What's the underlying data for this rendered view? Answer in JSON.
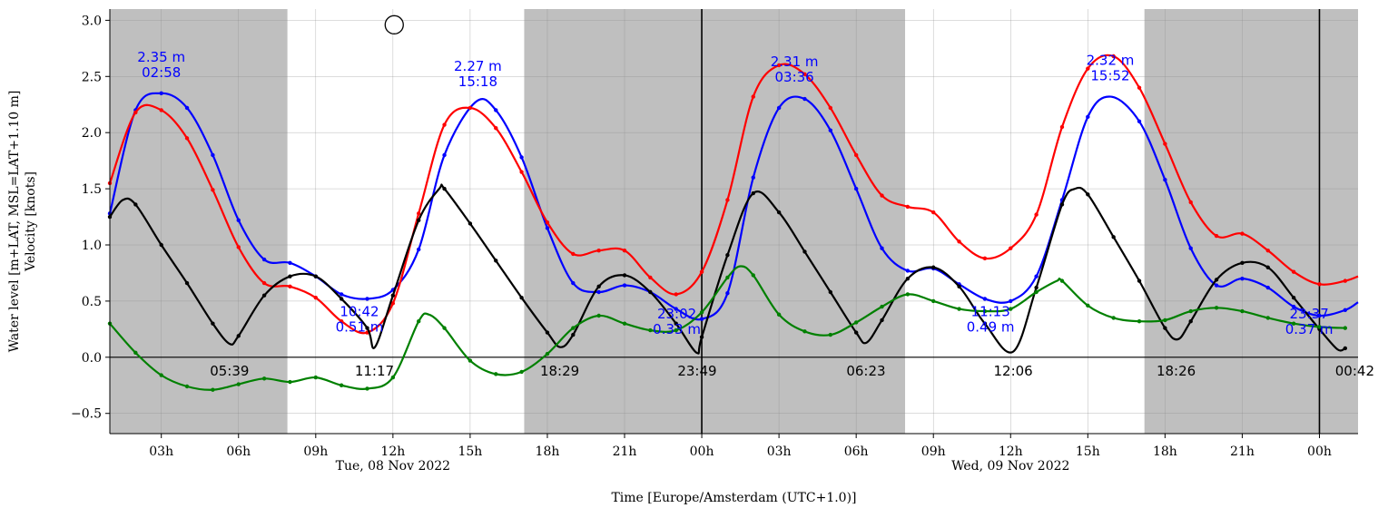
{
  "chart_data": {
    "type": "line",
    "xlabel": "Time [Europe/Amsterdam (UTC+1.0)]",
    "ylabel_lines": [
      "Water level [m+LAT, MSL=LAT+1.10 m]",
      "Velocity [knots]"
    ],
    "ylim": [
      -0.68,
      3.1
    ],
    "xlim": [
      1.0,
      49.5
    ],
    "y_ticks": [
      -0.5,
      0.0,
      0.5,
      1.0,
      1.5,
      2.0,
      2.5,
      3.0
    ],
    "y_tick_labels": [
      "−0.5",
      "0.0",
      "0.5",
      "1.0",
      "1.5",
      "2.0",
      "2.5",
      "3.0"
    ],
    "x_ticks": [
      3,
      6,
      9,
      12,
      15,
      18,
      21,
      24,
      27,
      30,
      33,
      36,
      39,
      42,
      45,
      48
    ],
    "x_tick_labels": [
      "03h",
      "06h",
      "09h",
      "12h",
      "15h",
      "18h",
      "21h",
      "00h",
      "03h",
      "06h",
      "09h",
      "12h",
      "15h",
      "18h",
      "21h",
      "00h"
    ],
    "date_labels": [
      {
        "x": 12,
        "text": "Tue, 08 Nov 2022"
      },
      {
        "x": 36,
        "text": "Wed, 09 Nov 2022"
      }
    ],
    "grid": true,
    "night_bands": [
      [
        1.0,
        7.9
      ],
      [
        17.1,
        31.9
      ],
      [
        41.2,
        49.5
      ]
    ],
    "vlines": [
      24,
      48
    ],
    "moon_marker": {
      "x": 12.05,
      "y": 2.96
    },
    "series": [
      {
        "color": "#0000ff",
        "points": [
          [
            1.0,
            1.28
          ],
          [
            2.0,
            2.2
          ],
          [
            3.0,
            2.35
          ],
          [
            4.0,
            2.22
          ],
          [
            5.0,
            1.8
          ],
          [
            6.0,
            1.22
          ],
          [
            7.0,
            0.87
          ],
          [
            8.0,
            0.84
          ],
          [
            9.0,
            0.72
          ],
          [
            10.0,
            0.56
          ],
          [
            11.0,
            0.52
          ],
          [
            12.0,
            0.6
          ],
          [
            13.0,
            0.96
          ],
          [
            14.0,
            1.8
          ],
          [
            15.2,
            2.27
          ],
          [
            16.0,
            2.2
          ],
          [
            17.0,
            1.78
          ],
          [
            18.0,
            1.15
          ],
          [
            19.0,
            0.66
          ],
          [
            20.0,
            0.58
          ],
          [
            21.0,
            0.64
          ],
          [
            22.0,
            0.58
          ],
          [
            23.0,
            0.43
          ],
          [
            24.0,
            0.34
          ],
          [
            25.0,
            0.57
          ],
          [
            26.0,
            1.6
          ],
          [
            27.0,
            2.22
          ],
          [
            28.0,
            2.3
          ],
          [
            29.0,
            2.02
          ],
          [
            30.0,
            1.5
          ],
          [
            31.0,
            0.97
          ],
          [
            32.0,
            0.77
          ],
          [
            33.0,
            0.79
          ],
          [
            34.0,
            0.65
          ],
          [
            35.0,
            0.52
          ],
          [
            36.0,
            0.5
          ],
          [
            37.0,
            0.72
          ],
          [
            38.0,
            1.4
          ],
          [
            39.0,
            2.14
          ],
          [
            39.9,
            2.32
          ],
          [
            41.0,
            2.1
          ],
          [
            42.0,
            1.58
          ],
          [
            43.0,
            0.97
          ],
          [
            44.0,
            0.64
          ],
          [
            45.0,
            0.7
          ],
          [
            46.0,
            0.62
          ],
          [
            47.0,
            0.45
          ],
          [
            48.0,
            0.37
          ],
          [
            49.0,
            0.42
          ],
          [
            49.5,
            0.49
          ]
        ]
      },
      {
        "color": "#ff0000",
        "points": [
          [
            1.0,
            1.55
          ],
          [
            2.0,
            2.18
          ],
          [
            3.0,
            2.2
          ],
          [
            4.0,
            1.95
          ],
          [
            5.0,
            1.49
          ],
          [
            6.0,
            0.98
          ],
          [
            7.0,
            0.66
          ],
          [
            8.0,
            0.63
          ],
          [
            9.0,
            0.53
          ],
          [
            10.0,
            0.32
          ],
          [
            11.0,
            0.22
          ],
          [
            12.0,
            0.48
          ],
          [
            13.0,
            1.28
          ],
          [
            14.0,
            2.07
          ],
          [
            15.0,
            2.22
          ],
          [
            16.0,
            2.04
          ],
          [
            17.0,
            1.65
          ],
          [
            18.0,
            1.2
          ],
          [
            19.0,
            0.92
          ],
          [
            20.0,
            0.95
          ],
          [
            21.0,
            0.95
          ],
          [
            22.0,
            0.71
          ],
          [
            23.0,
            0.56
          ],
          [
            24.0,
            0.76
          ],
          [
            25.0,
            1.4
          ],
          [
            26.0,
            2.32
          ],
          [
            27.0,
            2.6
          ],
          [
            28.0,
            2.52
          ],
          [
            29.0,
            2.22
          ],
          [
            30.0,
            1.8
          ],
          [
            31.0,
            1.44
          ],
          [
            32.0,
            1.34
          ],
          [
            33.0,
            1.29
          ],
          [
            34.0,
            1.03
          ],
          [
            35.0,
            0.88
          ],
          [
            36.0,
            0.97
          ],
          [
            37.0,
            1.27
          ],
          [
            38.0,
            2.05
          ],
          [
            39.0,
            2.57
          ],
          [
            40.0,
            2.68
          ],
          [
            41.0,
            2.4
          ],
          [
            42.0,
            1.9
          ],
          [
            43.0,
            1.38
          ],
          [
            44.0,
            1.08
          ],
          [
            45.0,
            1.1
          ],
          [
            46.0,
            0.95
          ],
          [
            47.0,
            0.76
          ],
          [
            48.0,
            0.65
          ],
          [
            49.0,
            0.68
          ],
          [
            49.5,
            0.72
          ]
        ]
      },
      {
        "color": "#000000",
        "points": [
          [
            1.0,
            1.25
          ],
          [
            1.5,
            1.4
          ],
          [
            2.0,
            1.36
          ],
          [
            3.0,
            1.0
          ],
          [
            4.0,
            0.66
          ],
          [
            5.0,
            0.3
          ],
          [
            5.65,
            0.12
          ],
          [
            6.0,
            0.19
          ],
          [
            7.0,
            0.55
          ],
          [
            8.0,
            0.72
          ],
          [
            9.0,
            0.72
          ],
          [
            10.0,
            0.52
          ],
          [
            11.0,
            0.26
          ],
          [
            11.3,
            0.09
          ],
          [
            12.0,
            0.55
          ],
          [
            13.0,
            1.22
          ],
          [
            13.8,
            1.5
          ],
          [
            14.0,
            1.5
          ],
          [
            15.0,
            1.19
          ],
          [
            16.0,
            0.86
          ],
          [
            17.0,
            0.53
          ],
          [
            18.0,
            0.22
          ],
          [
            18.5,
            0.09
          ],
          [
            19.0,
            0.2
          ],
          [
            20.0,
            0.63
          ],
          [
            21.0,
            0.73
          ],
          [
            22.0,
            0.58
          ],
          [
            23.0,
            0.3
          ],
          [
            23.8,
            0.04
          ],
          [
            24.0,
            0.18
          ],
          [
            25.0,
            0.91
          ],
          [
            26.0,
            1.46
          ],
          [
            27.0,
            1.29
          ],
          [
            28.0,
            0.94
          ],
          [
            29.0,
            0.58
          ],
          [
            30.0,
            0.22
          ],
          [
            30.4,
            0.13
          ],
          [
            31.0,
            0.33
          ],
          [
            32.0,
            0.7
          ],
          [
            33.0,
            0.8
          ],
          [
            34.0,
            0.63
          ],
          [
            35.0,
            0.3
          ],
          [
            36.1,
            0.05
          ],
          [
            37.0,
            0.62
          ],
          [
            38.0,
            1.36
          ],
          [
            38.5,
            1.5
          ],
          [
            39.0,
            1.45
          ],
          [
            40.0,
            1.07
          ],
          [
            41.0,
            0.68
          ],
          [
            42.0,
            0.26
          ],
          [
            42.5,
            0.16
          ],
          [
            43.0,
            0.32
          ],
          [
            44.0,
            0.69
          ],
          [
            45.0,
            0.84
          ],
          [
            46.0,
            0.8
          ],
          [
            47.0,
            0.53
          ],
          [
            48.0,
            0.25
          ],
          [
            48.7,
            0.07
          ],
          [
            49.0,
            0.08
          ]
        ]
      },
      {
        "color": "#008000",
        "points": [
          [
            1.0,
            0.3
          ],
          [
            2.0,
            0.04
          ],
          [
            3.0,
            -0.16
          ],
          [
            4.0,
            -0.26
          ],
          [
            5.0,
            -0.29
          ],
          [
            6.0,
            -0.24
          ],
          [
            7.0,
            -0.19
          ],
          [
            8.0,
            -0.22
          ],
          [
            9.0,
            -0.18
          ],
          [
            10.0,
            -0.25
          ],
          [
            11.0,
            -0.28
          ],
          [
            12.0,
            -0.18
          ],
          [
            13.0,
            0.32
          ],
          [
            13.4,
            0.38
          ],
          [
            14.0,
            0.26
          ],
          [
            15.0,
            -0.03
          ],
          [
            16.0,
            -0.15
          ],
          [
            17.0,
            -0.13
          ],
          [
            18.0,
            0.03
          ],
          [
            19.0,
            0.26
          ],
          [
            20.0,
            0.37
          ],
          [
            21.0,
            0.3
          ],
          [
            22.0,
            0.24
          ],
          [
            23.0,
            0.24
          ],
          [
            24.0,
            0.4
          ],
          [
            25.0,
            0.71
          ],
          [
            25.5,
            0.81
          ],
          [
            26.0,
            0.73
          ],
          [
            27.0,
            0.38
          ],
          [
            28.0,
            0.23
          ],
          [
            29.0,
            0.2
          ],
          [
            30.0,
            0.31
          ],
          [
            31.0,
            0.45
          ],
          [
            32.0,
            0.56
          ],
          [
            33.0,
            0.5
          ],
          [
            34.0,
            0.43
          ],
          [
            35.0,
            0.41
          ],
          [
            36.0,
            0.43
          ],
          [
            37.0,
            0.58
          ],
          [
            37.8,
            0.68
          ],
          [
            38.0,
            0.68
          ],
          [
            39.0,
            0.46
          ],
          [
            40.0,
            0.35
          ],
          [
            41.0,
            0.32
          ],
          [
            42.0,
            0.33
          ],
          [
            43.0,
            0.41
          ],
          [
            44.0,
            0.44
          ],
          [
            45.0,
            0.41
          ],
          [
            46.0,
            0.35
          ],
          [
            47.0,
            0.3
          ],
          [
            48.0,
            0.27
          ],
          [
            49.0,
            0.26
          ]
        ]
      }
    ],
    "extrema_labels": [
      {
        "x": 3.0,
        "y": 2.35,
        "value": "2.35 m",
        "time": "02:58",
        "kind": "high"
      },
      {
        "x": 10.7,
        "y": 0.22,
        "value": "0.51 m",
        "time": "10:42",
        "kind": "low"
      },
      {
        "x": 15.3,
        "y": 2.27,
        "value": "2.27 m",
        "time": "15:18",
        "kind": "high"
      },
      {
        "x": 23.03,
        "y": 0.2,
        "value": "0.33 m",
        "time": "23:02",
        "kind": "low"
      },
      {
        "x": 27.6,
        "y": 2.31,
        "value": "2.31 m",
        "time": "03:36",
        "kind": "high"
      },
      {
        "x": 35.22,
        "y": 0.22,
        "value": "0.49 m",
        "time": "11:13",
        "kind": "low"
      },
      {
        "x": 39.87,
        "y": 2.32,
        "value": "2.32 m",
        "time": "15:52",
        "kind": "high"
      },
      {
        "x": 47.6,
        "y": 0.2,
        "value": "0.37 m",
        "time": "23:37",
        "kind": "low"
      }
    ],
    "slack_labels": [
      {
        "x": 5.65,
        "text": "05:39"
      },
      {
        "x": 11.28,
        "text": "11:17"
      },
      {
        "x": 18.48,
        "text": "18:29"
      },
      {
        "x": 23.82,
        "text": "23:49"
      },
      {
        "x": 30.38,
        "text": "06:23"
      },
      {
        "x": 36.1,
        "text": "12:06"
      },
      {
        "x": 42.43,
        "text": "18:26"
      },
      {
        "x": 48.7,
        "text": "00:42"
      }
    ]
  }
}
